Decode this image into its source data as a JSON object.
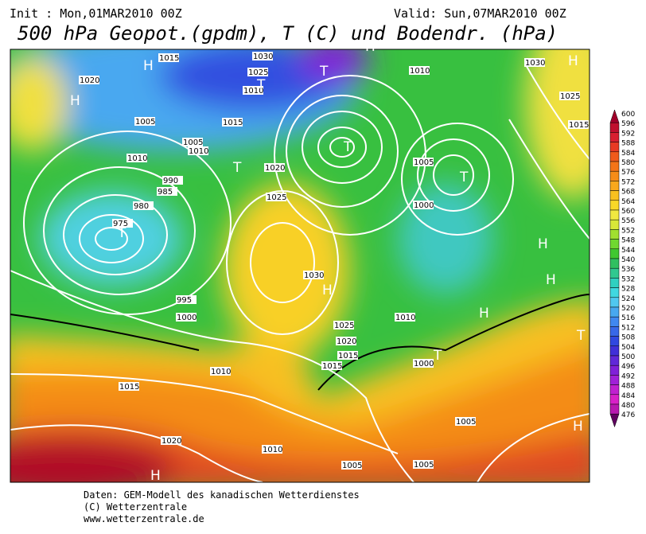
{
  "header": {
    "init": "Init : Mon,01MAR2010 00Z",
    "valid": "Valid: Sun,07MAR2010 00Z",
    "title": "500 hPa Geopot.(gpdm), T (C) und Bodendr. (hPa)"
  },
  "colorbar": {
    "values": [
      600,
      596,
      592,
      588,
      584,
      580,
      576,
      572,
      568,
      564,
      560,
      556,
      552,
      548,
      544,
      540,
      536,
      532,
      528,
      524,
      520,
      516,
      512,
      508,
      504,
      500,
      496,
      492,
      488,
      484,
      480,
      476
    ],
    "colors": [
      "#a0002a",
      "#c0102e",
      "#d82030",
      "#e83a24",
      "#f05a1c",
      "#f47418",
      "#f68c18",
      "#f8a81c",
      "#f8c020",
      "#f8d828",
      "#f0e840",
      "#d8e838",
      "#a0e030",
      "#70d830",
      "#40c830",
      "#30c060",
      "#30c890",
      "#30d0c0",
      "#40d8e0",
      "#50c8f0",
      "#48a8f0",
      "#4088f0",
      "#3868e8",
      "#3048e0",
      "#4030d8",
      "#6028d8",
      "#8020d8",
      "#a020d8",
      "#c020d0",
      "#d820c8",
      "#b818b0",
      "#600060"
    ]
  },
  "map": {
    "isobar_labels": [
      1015,
      1020,
      1005,
      1010,
      990,
      985,
      980,
      975,
      1030,
      1025,
      1000,
      995,
      1005,
      1010,
      1020,
      1025,
      1030,
      1015,
      1010,
      1005,
      1000,
      1025,
      1020,
      1015,
      1010,
      1005,
      1015,
      1010,
      1030,
      1025,
      1015,
      1005,
      1010,
      1000,
      1005,
      1015,
      1020,
      1010
    ],
    "centers": [
      "H",
      "H",
      "T",
      "T",
      "T",
      "T",
      "H",
      "T",
      "H",
      "H",
      "T",
      "H",
      "T",
      "H",
      "H",
      "T",
      "H"
    ]
  },
  "footer": {
    "lines": [
      "Daten: GEM-Modell des kanadischen Wetterdienstes",
      "(C) Wetterzentrale",
      "www.wetterzentrale.de"
    ]
  }
}
